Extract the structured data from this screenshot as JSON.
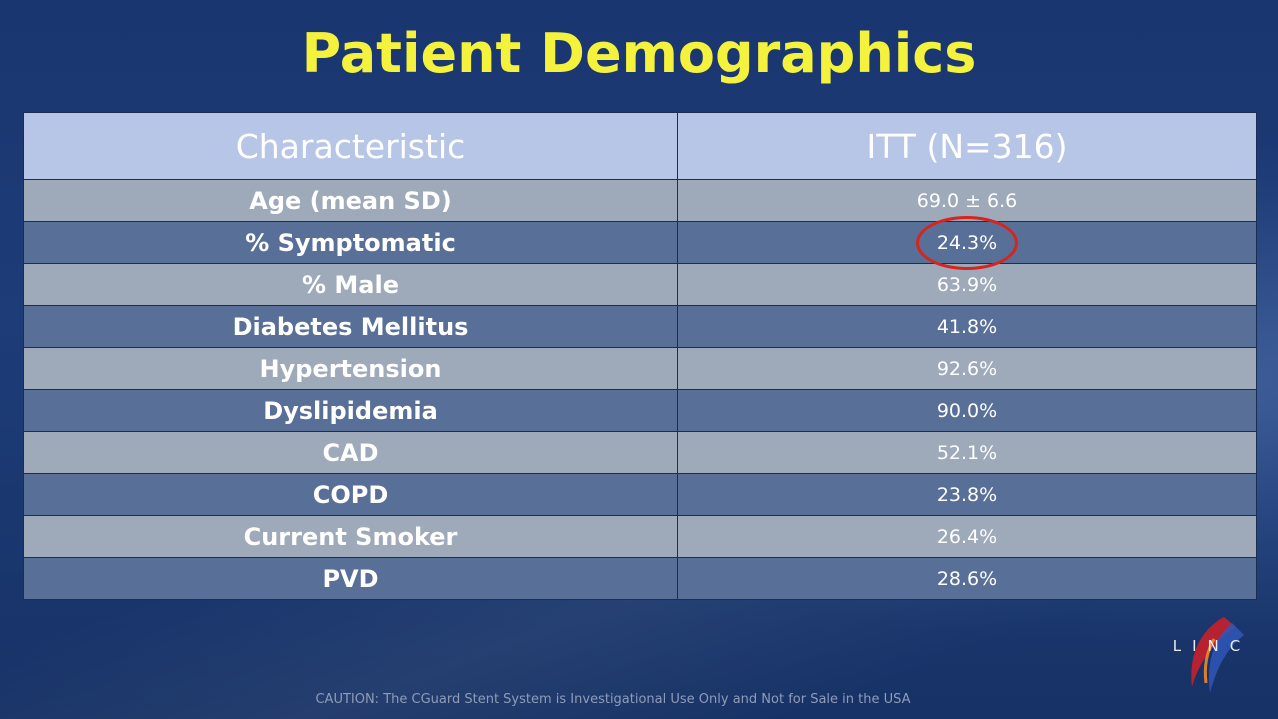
{
  "title": "Patient Demographics",
  "table": {
    "headers": [
      "Characteristic",
      "ITT (N=316)"
    ],
    "rows": [
      {
        "characteristic": "Age (mean  SD)",
        "value": "69.0 ± 6.6"
      },
      {
        "characteristic": "% Symptomatic",
        "value": "24.3%",
        "highlighted": true
      },
      {
        "characteristic": "% Male",
        "value": "63.9%"
      },
      {
        "characteristic": "Diabetes Mellitus",
        "value": "41.8%"
      },
      {
        "characteristic": "Hypertension",
        "value": "92.6%"
      },
      {
        "characteristic": "Dyslipidemia",
        "value": "90.0%"
      },
      {
        "characteristic": "CAD",
        "value": "52.1%"
      },
      {
        "characteristic": "COPD",
        "value": "23.8%"
      },
      {
        "characteristic": "Current Smoker",
        "value": "26.4%"
      },
      {
        "characteristic": "PVD",
        "value": "28.6%"
      }
    ]
  },
  "footer": {
    "caution": "CAUTION: The CGuard Stent System is Investigational Use Only and Not for Sale in the USA"
  },
  "logo": {
    "text": "LINC",
    "icon": "linc-logo-icon"
  },
  "colors": {
    "title": "#f4f23c",
    "header_bg": "#b7c6e6",
    "row_light": "#9ea9b9",
    "row_dark": "#586f97",
    "highlight_circle": "#d8241e",
    "background": "#1b3a72"
  }
}
